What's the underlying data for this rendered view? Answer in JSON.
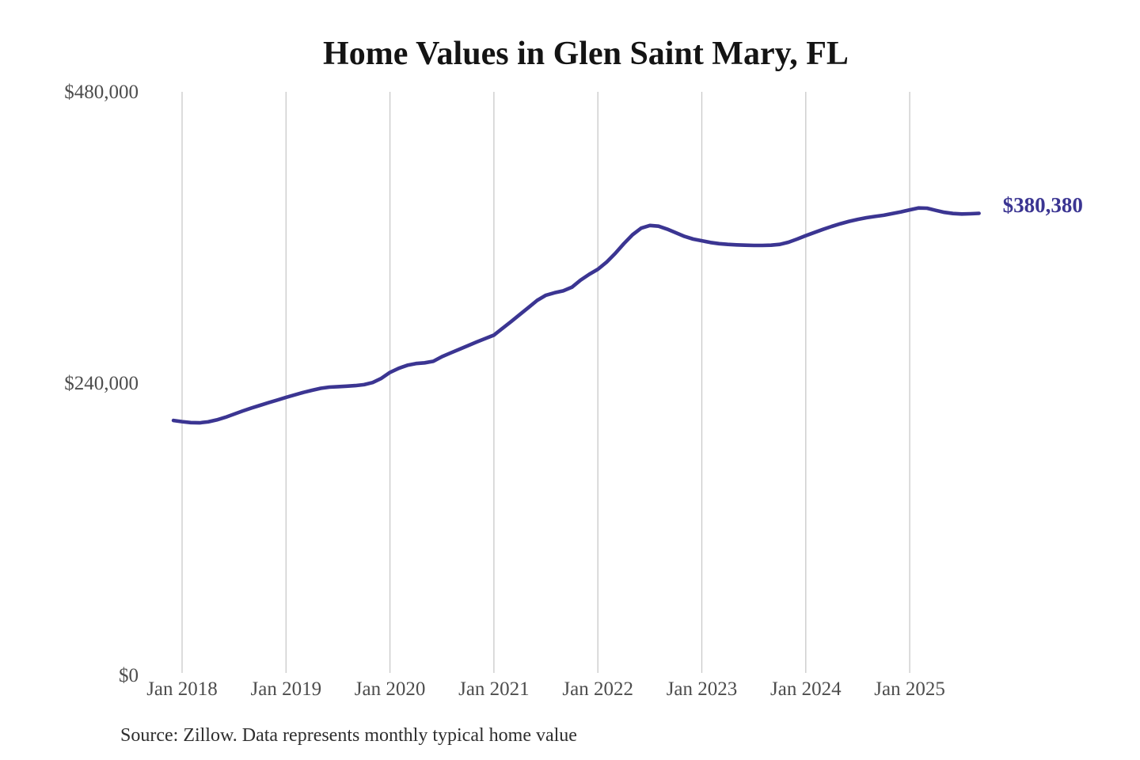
{
  "colors": {
    "line": "#3b3592",
    "grid": "#c9c9c9",
    "axis_text": "#4d4d4d",
    "title_text": "#141414",
    "source_text": "#2e2e2e",
    "background": "#ffffff"
  },
  "chart_data": {
    "type": "line",
    "title": "Home Values in Glen Saint Mary, FL",
    "series_name": "Monthly typical home value",
    "current_value": 380380,
    "current_value_label": "$380,380",
    "source": "Source: Zillow. Data represents monthly typical home value",
    "xlabel": "",
    "ylabel": "",
    "ylim": [
      0,
      480000
    ],
    "yticks": [
      {
        "label": "$0",
        "value": 0
      },
      {
        "label": "$240,000",
        "value": 240000
      },
      {
        "label": "$480,000",
        "value": 480000
      }
    ],
    "xtick_labels": [
      "Jan 2018",
      "Jan 2019",
      "Jan 2020",
      "Jan 2021",
      "Jan 2022",
      "Jan 2023",
      "Jan 2024",
      "Jan 2025"
    ],
    "grid": "vertical-only",
    "legend": "none",
    "x": [
      "Dec 2017",
      "Jan 2018",
      "Feb 2018",
      "Mar 2018",
      "Apr 2018",
      "May 2018",
      "Jun 2018",
      "Jul 2018",
      "Aug 2018",
      "Sep 2018",
      "Oct 2018",
      "Nov 2018",
      "Dec 2018",
      "Jan 2019",
      "Feb 2019",
      "Mar 2019",
      "Apr 2019",
      "May 2019",
      "Jun 2019",
      "Jul 2019",
      "Aug 2019",
      "Sep 2019",
      "Oct 2019",
      "Nov 2019",
      "Dec 2019",
      "Jan 2020",
      "Feb 2020",
      "Mar 2020",
      "Apr 2020",
      "May 2020",
      "Jun 2020",
      "Jul 2020",
      "Aug 2020",
      "Sep 2020",
      "Oct 2020",
      "Nov 2020",
      "Dec 2020",
      "Jan 2021",
      "Feb 2021",
      "Mar 2021",
      "Apr 2021",
      "May 2021",
      "Jun 2021",
      "Jul 2021",
      "Aug 2021",
      "Sep 2021",
      "Oct 2021",
      "Nov 2021",
      "Dec 2021",
      "Jan 2022",
      "Feb 2022",
      "Mar 2022",
      "Apr 2022",
      "May 2022",
      "Jun 2022",
      "Jul 2022",
      "Aug 2022",
      "Sep 2022",
      "Oct 2022",
      "Nov 2022",
      "Dec 2022",
      "Jan 2023",
      "Feb 2023",
      "Mar 2023",
      "Apr 2023",
      "May 2023",
      "Jun 2023",
      "Jul 2023",
      "Aug 2023",
      "Sep 2023",
      "Oct 2023",
      "Nov 2023",
      "Dec 2023",
      "Jan 2024",
      "Feb 2024",
      "Mar 2024",
      "Apr 2024",
      "May 2024",
      "Jun 2024",
      "Jul 2024",
      "Aug 2024",
      "Sep 2024",
      "Oct 2024",
      "Nov 2024",
      "Dec 2024",
      "Jan 2025",
      "Feb 2025",
      "Mar 2025",
      "Apr 2025",
      "May 2025",
      "Jun 2025",
      "Jul 2025",
      "Aug 2025",
      "Sep 2025"
    ],
    "values": [
      210000,
      209000,
      208200,
      208000,
      208800,
      210400,
      212600,
      215200,
      217800,
      220200,
      222400,
      224600,
      226800,
      229000,
      231000,
      233000,
      234800,
      236400,
      237400,
      237800,
      238200,
      238600,
      239400,
      241200,
      244600,
      249500,
      252800,
      255400,
      256800,
      257400,
      258600,
      262500,
      265500,
      268500,
      271500,
      274500,
      277400,
      280200,
      285800,
      291400,
      297200,
      303000,
      308800,
      313000,
      315000,
      316600,
      319600,
      325400,
      330200,
      334400,
      340200,
      347400,
      355400,
      362800,
      368200,
      370400,
      369800,
      367400,
      364400,
      361400,
      359200,
      357800,
      356400,
      355400,
      354800,
      354400,
      354200,
      354000,
      354000,
      354200,
      354800,
      356600,
      359200,
      362000,
      364600,
      367200,
      369600,
      371800,
      373800,
      375400,
      376800,
      377800,
      378800,
      380200,
      381600,
      383200,
      384800,
      384600,
      382800,
      381200,
      380200,
      379800,
      380000,
      380380
    ]
  }
}
